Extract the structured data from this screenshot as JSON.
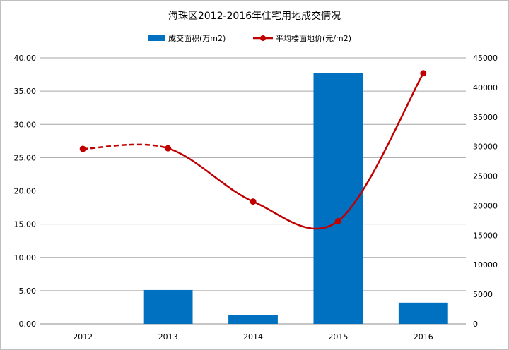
{
  "chart_data": {
    "type": "bar+line",
    "title": "海珠区2012-2016年住宅用地成交情况",
    "categories": [
      "2012",
      "2013",
      "2014",
      "2015",
      "2016"
    ],
    "series": [
      {
        "name": "成交面积(万m2)",
        "type": "bar",
        "axis": "left",
        "values": [
          0,
          5.1,
          1.3,
          37.7,
          3.2
        ],
        "color": "#0070c0"
      },
      {
        "name": "平均楼面地价(元/m2)",
        "type": "line",
        "axis": "right",
        "values": [
          29600,
          29700,
          20700,
          17400,
          42400
        ],
        "color": "#c00000",
        "smooth": true,
        "segment_styles": [
          "dashed",
          "solid",
          "solid",
          "solid"
        ]
      }
    ],
    "left_axis": {
      "min": 0,
      "max": 40,
      "step": 5,
      "tick_labels": [
        "0.00",
        "5.00",
        "10.00",
        "15.00",
        "20.00",
        "25.00",
        "30.00",
        "35.00",
        "40.00"
      ]
    },
    "right_axis": {
      "min": 0,
      "max": 45000,
      "step": 5000,
      "tick_labels": [
        "0",
        "5000",
        "10000",
        "15000",
        "20000",
        "25000",
        "30000",
        "35000",
        "40000",
        "45000"
      ]
    },
    "grid": true,
    "legend_position": "top"
  }
}
